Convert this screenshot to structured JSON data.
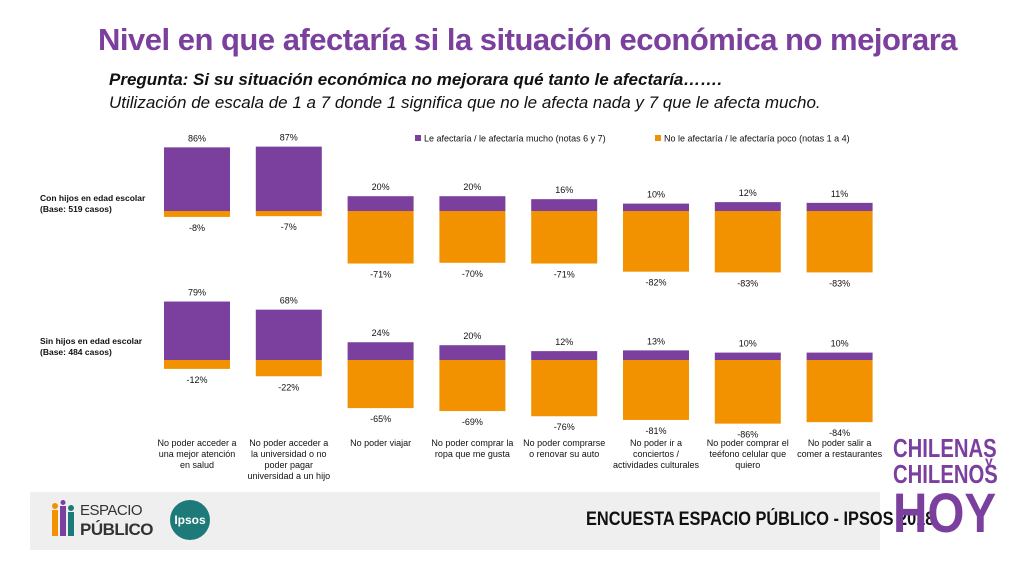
{
  "title": "Nivel en que afectaría si la situación económica no mejorara",
  "question": "Pregunta: Si su situación económica no mejorara qué tanto le afectaría…….",
  "scale_note": "Utilización de escala de 1 a 7 donde 1 significa que no le afecta nada y 7 que le afecta mucho.",
  "colors": {
    "affects_much": "#7B3F9E",
    "affects_little": "#F39200",
    "title": "#7B3F9E"
  },
  "chart_data": {
    "type": "bar",
    "categories": [
      "No poder acceder a una mejor atención en salud",
      "No poder acceder a la universidad o no poder pagar universidad a un hijo",
      "No poder viajar",
      "No poder comprar la ropa que me gusta",
      "No poder comprarse o renovar su auto",
      "No poder ir a conciertos / actividades culturales",
      "No poder comprar el teéfono celular que quiero",
      "No poder salir a comer a restaurantes"
    ],
    "category_lines": [
      [
        "No poder acceder a",
        "una mejor atención",
        "en salud"
      ],
      [
        "No poder acceder a",
        "la universidad o no",
        "poder pagar",
        "universidad a un hijo"
      ],
      [
        "No poder viajar"
      ],
      [
        "No poder comprar la",
        "ropa que me gusta"
      ],
      [
        "No poder comprarse",
        "o renovar su auto"
      ],
      [
        "No poder ir a",
        "conciertos /",
        "actividades culturales"
      ],
      [
        "No poder comprar el",
        "teéfono celular que",
        "quiero"
      ],
      [
        "No poder salir a",
        "comer a restaurantes"
      ]
    ],
    "legend": [
      {
        "name": "Le afectaría / le afectaría mucho (notas 6 y 7)",
        "color": "#7B3F9E"
      },
      {
        "name": "No le afectaría / le afectaría poco (notas 1 a 4)",
        "color": "#F39200"
      }
    ],
    "panels": [
      {
        "label_line1": "Con hijos en edad escolar",
        "label_line2": "(Base: 519 casos)",
        "series": [
          {
            "name": "Le afectaría / le afectaría mucho (notas 6 y 7)",
            "values": [
              86,
              87,
              20,
              20,
              16,
              10,
              12,
              11
            ]
          },
          {
            "name": "No le afectaría / le afectaría poco (notas 1 a 4)",
            "values": [
              -8,
              -7,
              -71,
              -70,
              -71,
              -82,
              -83,
              -83
            ]
          }
        ]
      },
      {
        "label_line1": "Sin hijos en edad escolar",
        "label_line2": "(Base: 484 casos)",
        "series": [
          {
            "name": "Le afectaría / le afectaría mucho (notas 6 y 7)",
            "values": [
              79,
              68,
              24,
              20,
              12,
              13,
              10,
              10
            ]
          },
          {
            "name": "No le afectaría / le afectaría poco (notas 1 a 4)",
            "values": [
              -12,
              -22,
              -65,
              -69,
              -76,
              -81,
              -86,
              -84
            ]
          }
        ]
      }
    ],
    "value_suffix": "%"
  },
  "footer": {
    "survey": "ENCUESTA ESPACIO PÚBLICO - IPSOS 2018",
    "logo_espacio_line1": "ESPACIO",
    "logo_espacio_line2": "PÚBLICO",
    "logo_ipsos": "Ipsos",
    "brand_line1": "CHILENAS",
    "brand_y": "y",
    "brand_line2": "CHILENOS",
    "brand_line3": "HOY"
  }
}
